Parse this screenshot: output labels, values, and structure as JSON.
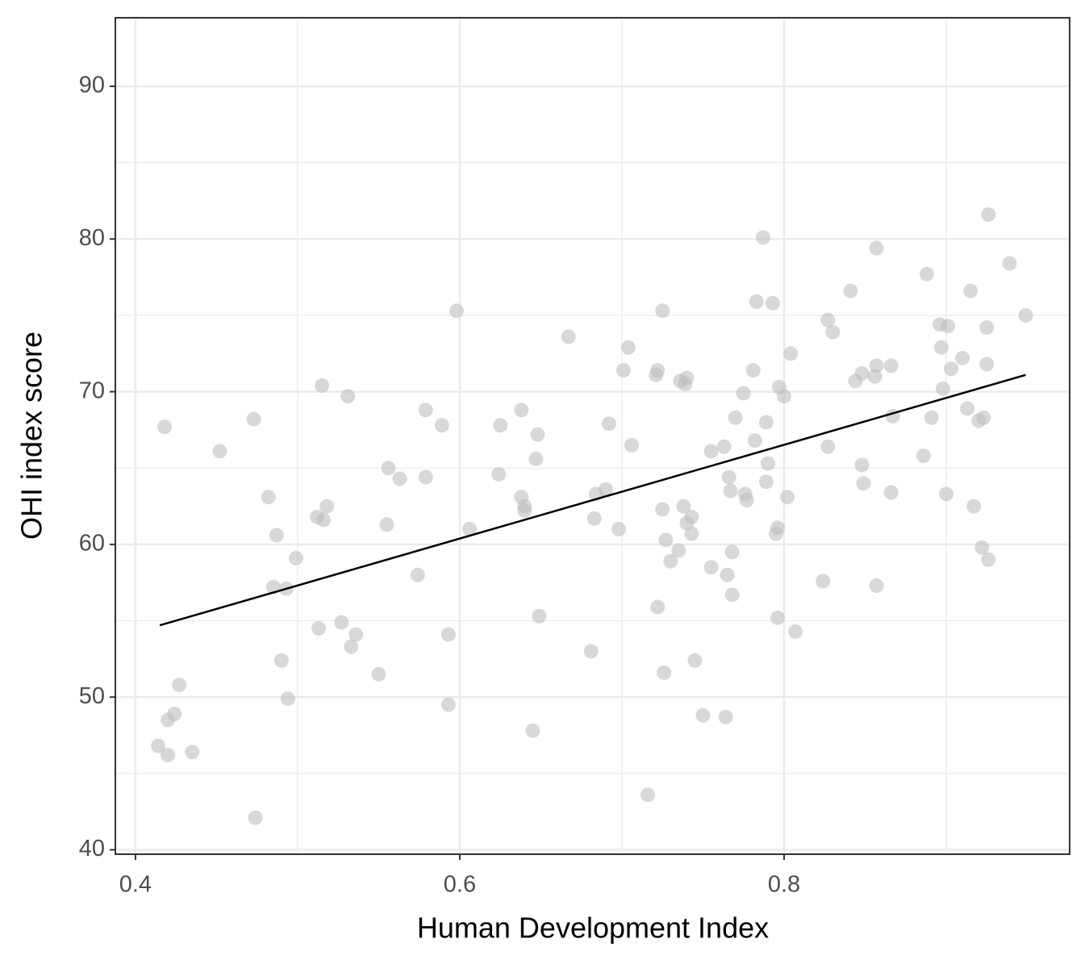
{
  "chart_data": {
    "type": "scatter",
    "x_label": "Human Development Index",
    "y_label": "OHI index score",
    "xlim": [
      0.3876,
      0.9761
    ],
    "ylim": [
      39.71,
      94.49
    ],
    "xticks": [
      0.4,
      0.6,
      0.8
    ],
    "yticks": [
      40,
      50,
      60,
      70,
      80,
      90
    ],
    "minor_xticks": [
      0.5,
      0.7,
      0.9
    ],
    "minor_yticks": [
      45,
      55,
      65,
      75,
      85
    ],
    "grid": true,
    "series": [
      {
        "color": "#bebebe",
        "x": [
          0.418,
          0.452,
          0.473,
          0.414,
          0.42,
          0.424,
          0.427,
          0.42,
          0.435,
          0.474,
          0.482,
          0.487,
          0.485,
          0.493,
          0.49,
          0.494,
          0.499,
          0.515,
          0.512,
          0.518,
          0.516,
          0.513,
          0.527,
          0.533,
          0.536,
          0.531,
          0.55,
          0.555,
          0.556,
          0.563,
          0.574,
          0.579,
          0.579,
          0.589,
          0.593,
          0.593,
          0.598,
          0.606,
          0.624,
          0.625,
          0.638,
          0.638,
          0.64,
          0.64,
          0.648,
          0.647,
          0.649,
          0.645,
          0.667,
          0.681,
          0.683,
          0.684,
          0.69,
          0.692,
          0.698,
          0.701,
          0.704,
          0.706,
          0.716,
          0.722,
          0.722,
          0.721,
          0.725,
          0.725,
          0.726,
          0.727,
          0.73,
          0.735,
          0.736,
          0.74,
          0.739,
          0.738,
          0.74,
          0.743,
          0.743,
          0.745,
          0.75,
          0.755,
          0.755,
          0.763,
          0.764,
          0.765,
          0.766,
          0.767,
          0.768,
          0.768,
          0.77,
          0.775,
          0.776,
          0.777,
          0.781,
          0.782,
          0.783,
          0.787,
          0.789,
          0.79,
          0.789,
          0.793,
          0.795,
          0.796,
          0.796,
          0.797,
          0.8,
          0.802,
          0.804,
          0.807,
          0.824,
          0.827,
          0.827,
          0.83,
          0.841,
          0.844,
          0.848,
          0.848,
          0.849,
          0.856,
          0.857,
          0.857,
          0.857,
          0.866,
          0.867,
          0.866,
          0.886,
          0.888,
          0.891,
          0.896,
          0.897,
          0.898,
          0.901,
          0.9,
          0.903,
          0.91,
          0.913,
          0.915,
          0.917,
          0.92,
          0.922,
          0.923,
          0.925,
          0.925,
          0.926,
          0.926,
          0.939,
          0.949
        ],
        "values": [
          67.7,
          66.1,
          68.2,
          46.8,
          48.5,
          48.9,
          50.8,
          46.2,
          46.4,
          42.1,
          63.1,
          60.6,
          57.2,
          57.1,
          52.4,
          49.9,
          59.1,
          70.4,
          61.8,
          62.5,
          61.6,
          54.5,
          54.9,
          53.3,
          54.1,
          69.7,
          51.5,
          61.3,
          65.0,
          64.3,
          58.0,
          68.8,
          64.4,
          67.8,
          54.1,
          49.5,
          75.3,
          61.0,
          64.6,
          67.8,
          68.8,
          63.1,
          62.5,
          62.2,
          67.2,
          65.6,
          55.3,
          47.8,
          73.6,
          53.0,
          61.7,
          63.3,
          63.6,
          67.9,
          61.0,
          71.4,
          72.9,
          66.5,
          43.6,
          55.9,
          71.4,
          71.1,
          75.3,
          62.3,
          51.6,
          60.3,
          58.9,
          59.6,
          70.7,
          70.9,
          70.5,
          62.5,
          61.4,
          61.8,
          60.7,
          52.4,
          48.8,
          58.5,
          66.1,
          66.4,
          48.7,
          58.0,
          64.4,
          63.5,
          59.5,
          56.7,
          68.3,
          69.9,
          63.3,
          62.9,
          71.4,
          66.8,
          75.9,
          80.1,
          68.0,
          65.3,
          64.1,
          75.8,
          60.7,
          61.1,
          55.2,
          70.3,
          69.7,
          63.1,
          72.5,
          54.3,
          57.6,
          66.4,
          74.7,
          73.9,
          76.6,
          70.7,
          71.2,
          65.2,
          64.0,
          71.0,
          71.7,
          79.4,
          57.3,
          71.7,
          68.4,
          63.4,
          65.8,
          77.7,
          68.3,
          74.4,
          72.9,
          70.2,
          74.3,
          63.3,
          71.5,
          72.2,
          68.9,
          76.6,
          62.5,
          68.1,
          59.8,
          68.3,
          71.8,
          74.2,
          81.6,
          59.0,
          78.4,
          75.0
        ]
      }
    ],
    "fit": {
      "x": [
        0.415,
        0.949
      ],
      "values": [
        54.7,
        71.1
      ],
      "color": "#000000"
    }
  }
}
